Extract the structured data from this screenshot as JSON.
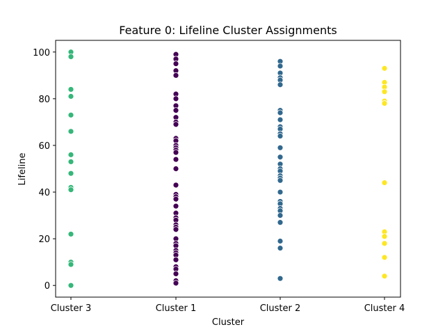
{
  "chart_data": {
    "type": "scatter",
    "title": "Feature 0: Lifeline Cluster Assignments",
    "xlabel": "Cluster",
    "ylabel": "Lifeline",
    "categories": [
      "Cluster 3",
      "Cluster 1",
      "Cluster 2",
      "Cluster 4"
    ],
    "ylim": [
      -5,
      105
    ],
    "yticks": [
      0,
      20,
      40,
      60,
      80,
      100
    ],
    "grid": false,
    "series": [
      {
        "category": "Cluster 3",
        "color": "#35b779",
        "values": [
          100,
          98,
          84,
          81,
          73,
          66,
          56,
          53,
          48,
          42,
          41,
          22,
          10,
          9,
          0
        ]
      },
      {
        "category": "Cluster 1",
        "color": "#440154",
        "values": [
          99,
          97,
          95,
          92,
          90,
          82,
          80,
          77,
          75,
          72,
          70,
          69,
          63,
          62,
          60,
          59,
          58,
          57,
          54,
          50,
          43,
          39,
          38,
          37,
          34,
          31,
          29,
          28,
          26,
          25,
          24,
          20,
          18,
          17,
          15,
          14,
          13,
          11,
          8,
          7,
          5,
          2,
          1
        ]
      },
      {
        "category": "Cluster 2",
        "color": "#31688e",
        "values": [
          96,
          94,
          91,
          89,
          88,
          86,
          75,
          74,
          71,
          68,
          67,
          65,
          64,
          59,
          55,
          52,
          50,
          49,
          47,
          46,
          45,
          40,
          36,
          35,
          33,
          32,
          30,
          27,
          19,
          16,
          3
        ]
      },
      {
        "category": "Cluster 4",
        "color": "#fde725",
        "values": [
          93,
          87,
          85,
          83,
          79,
          78,
          44,
          23,
          21,
          18,
          12,
          4
        ]
      }
    ]
  }
}
